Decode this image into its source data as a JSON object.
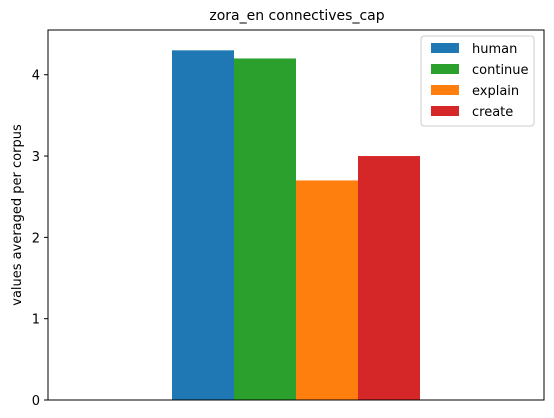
{
  "chart_data": {
    "type": "bar",
    "title": "zora_en connectives_cap",
    "xlabel": "",
    "ylabel": "values averaged per corpus",
    "ylim": [
      0,
      4.55
    ],
    "yticks": [
      0,
      1,
      2,
      3,
      4
    ],
    "grid": false,
    "legend_position": "top-right",
    "series": [
      {
        "name": "human",
        "value": 4.3,
        "color": "#1f77b4"
      },
      {
        "name": "continue",
        "value": 4.2,
        "color": "#2ca02c"
      },
      {
        "name": "explain",
        "value": 2.7,
        "color": "#ff7f0e"
      },
      {
        "name": "create",
        "value": 3.0,
        "color": "#d62728"
      }
    ]
  }
}
